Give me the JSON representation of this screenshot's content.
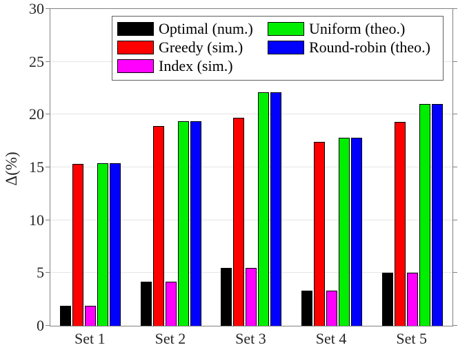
{
  "chart_data": {
    "type": "bar",
    "title": "",
    "xlabel": "",
    "ylabel": "Δ(%)",
    "ylim": [
      0,
      30
    ],
    "yticks": [
      0,
      5,
      10,
      15,
      20,
      25,
      30
    ],
    "grid": "horizontal",
    "legend_position": "top-center-inside",
    "categories": [
      "Set 1",
      "Set 2",
      "Set 3",
      "Set 4",
      "Set 5"
    ],
    "series": [
      {
        "name": "Optimal (num.)",
        "color": "#000000",
        "values": [
          1.9,
          4.2,
          5.5,
          3.3,
          5.0
        ]
      },
      {
        "name": "Greedy (sim.)",
        "color": "#ff0000",
        "values": [
          15.3,
          18.9,
          19.7,
          17.4,
          19.3
        ]
      },
      {
        "name": "Index (sim.)",
        "color": "#ff00ff",
        "values": [
          1.9,
          4.2,
          5.5,
          3.3,
          5.0
        ]
      },
      {
        "name": "Uniform (theo.)",
        "color": "#00ee00",
        "values": [
          15.4,
          19.4,
          22.1,
          17.8,
          21.0
        ]
      },
      {
        "name": "Round-robin (theo.)",
        "color": "#0000ff",
        "values": [
          15.4,
          19.4,
          22.1,
          17.8,
          21.0
        ]
      }
    ]
  },
  "colors": {
    "axis_frame": "#808080",
    "gridline": "#e5e5e5",
    "tick_text": "#262626",
    "legend_border": "#5f5f5f",
    "background": "#ffffff"
  }
}
